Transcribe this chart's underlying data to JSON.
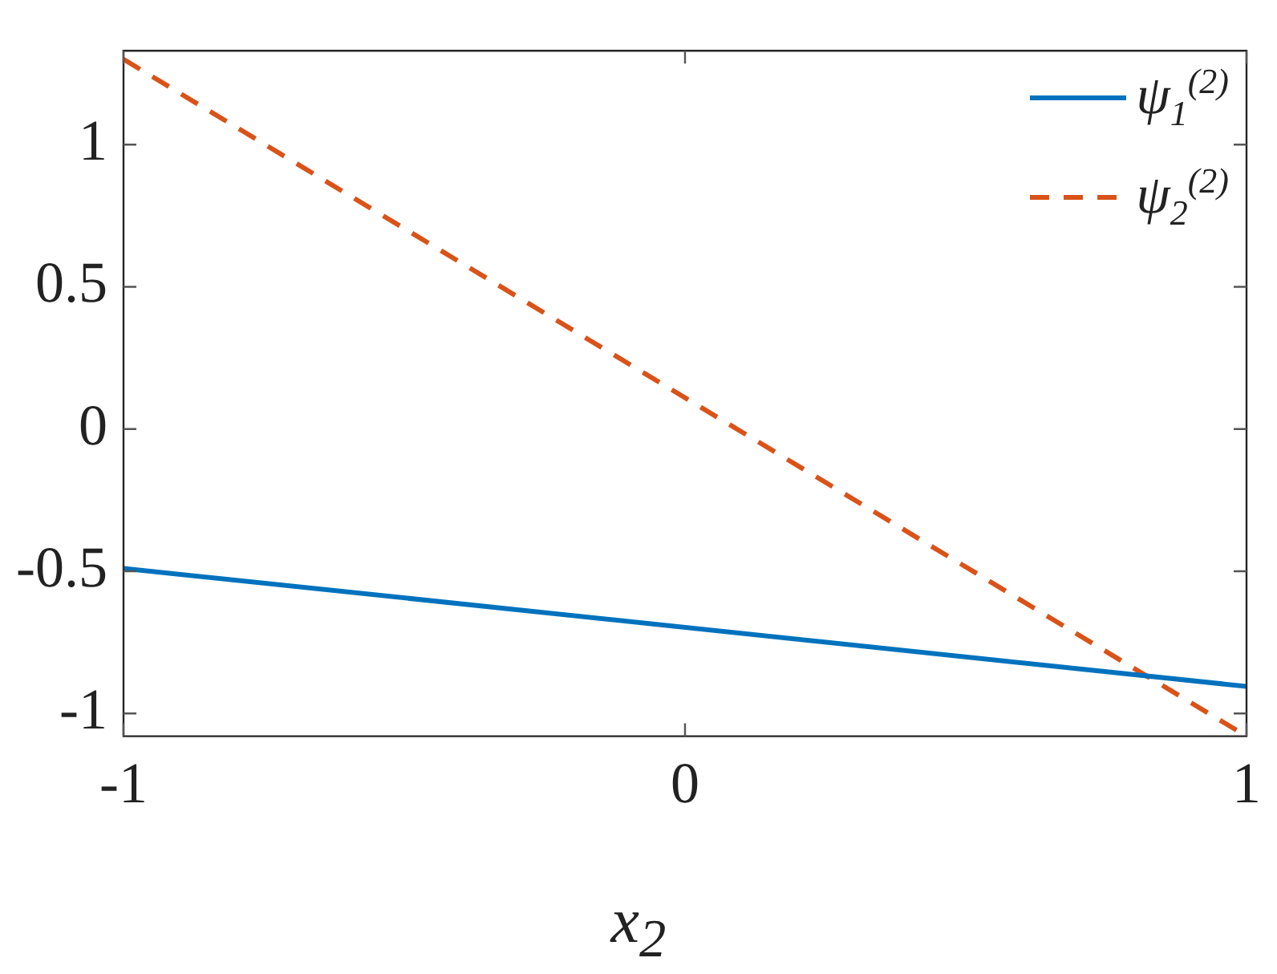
{
  "chart_data": {
    "type": "line",
    "xlabel": "x$_{2}$",
    "x": [
      -1,
      1
    ],
    "series": [
      {
        "name": "ψ$_{1}$$^{(2)}$",
        "color": "#0072bd",
        "line_style": "solid",
        "values": [
          -0.49,
          -0.905
        ]
      },
      {
        "name": "ψ$_{2}$$^{(2)}$",
        "color": "#d95319",
        "line_style": "dashed",
        "values": [
          1.3,
          -1.08
        ]
      }
    ],
    "xlim": [
      -1,
      1
    ],
    "xticks": [
      -1,
      0,
      1
    ],
    "ylim": [
      -1.08,
      1.33
    ],
    "yticks": [
      -1,
      -0.5,
      0,
      0.5,
      1
    ],
    "grid": false,
    "legend": "top right",
    "marker": "none"
  }
}
